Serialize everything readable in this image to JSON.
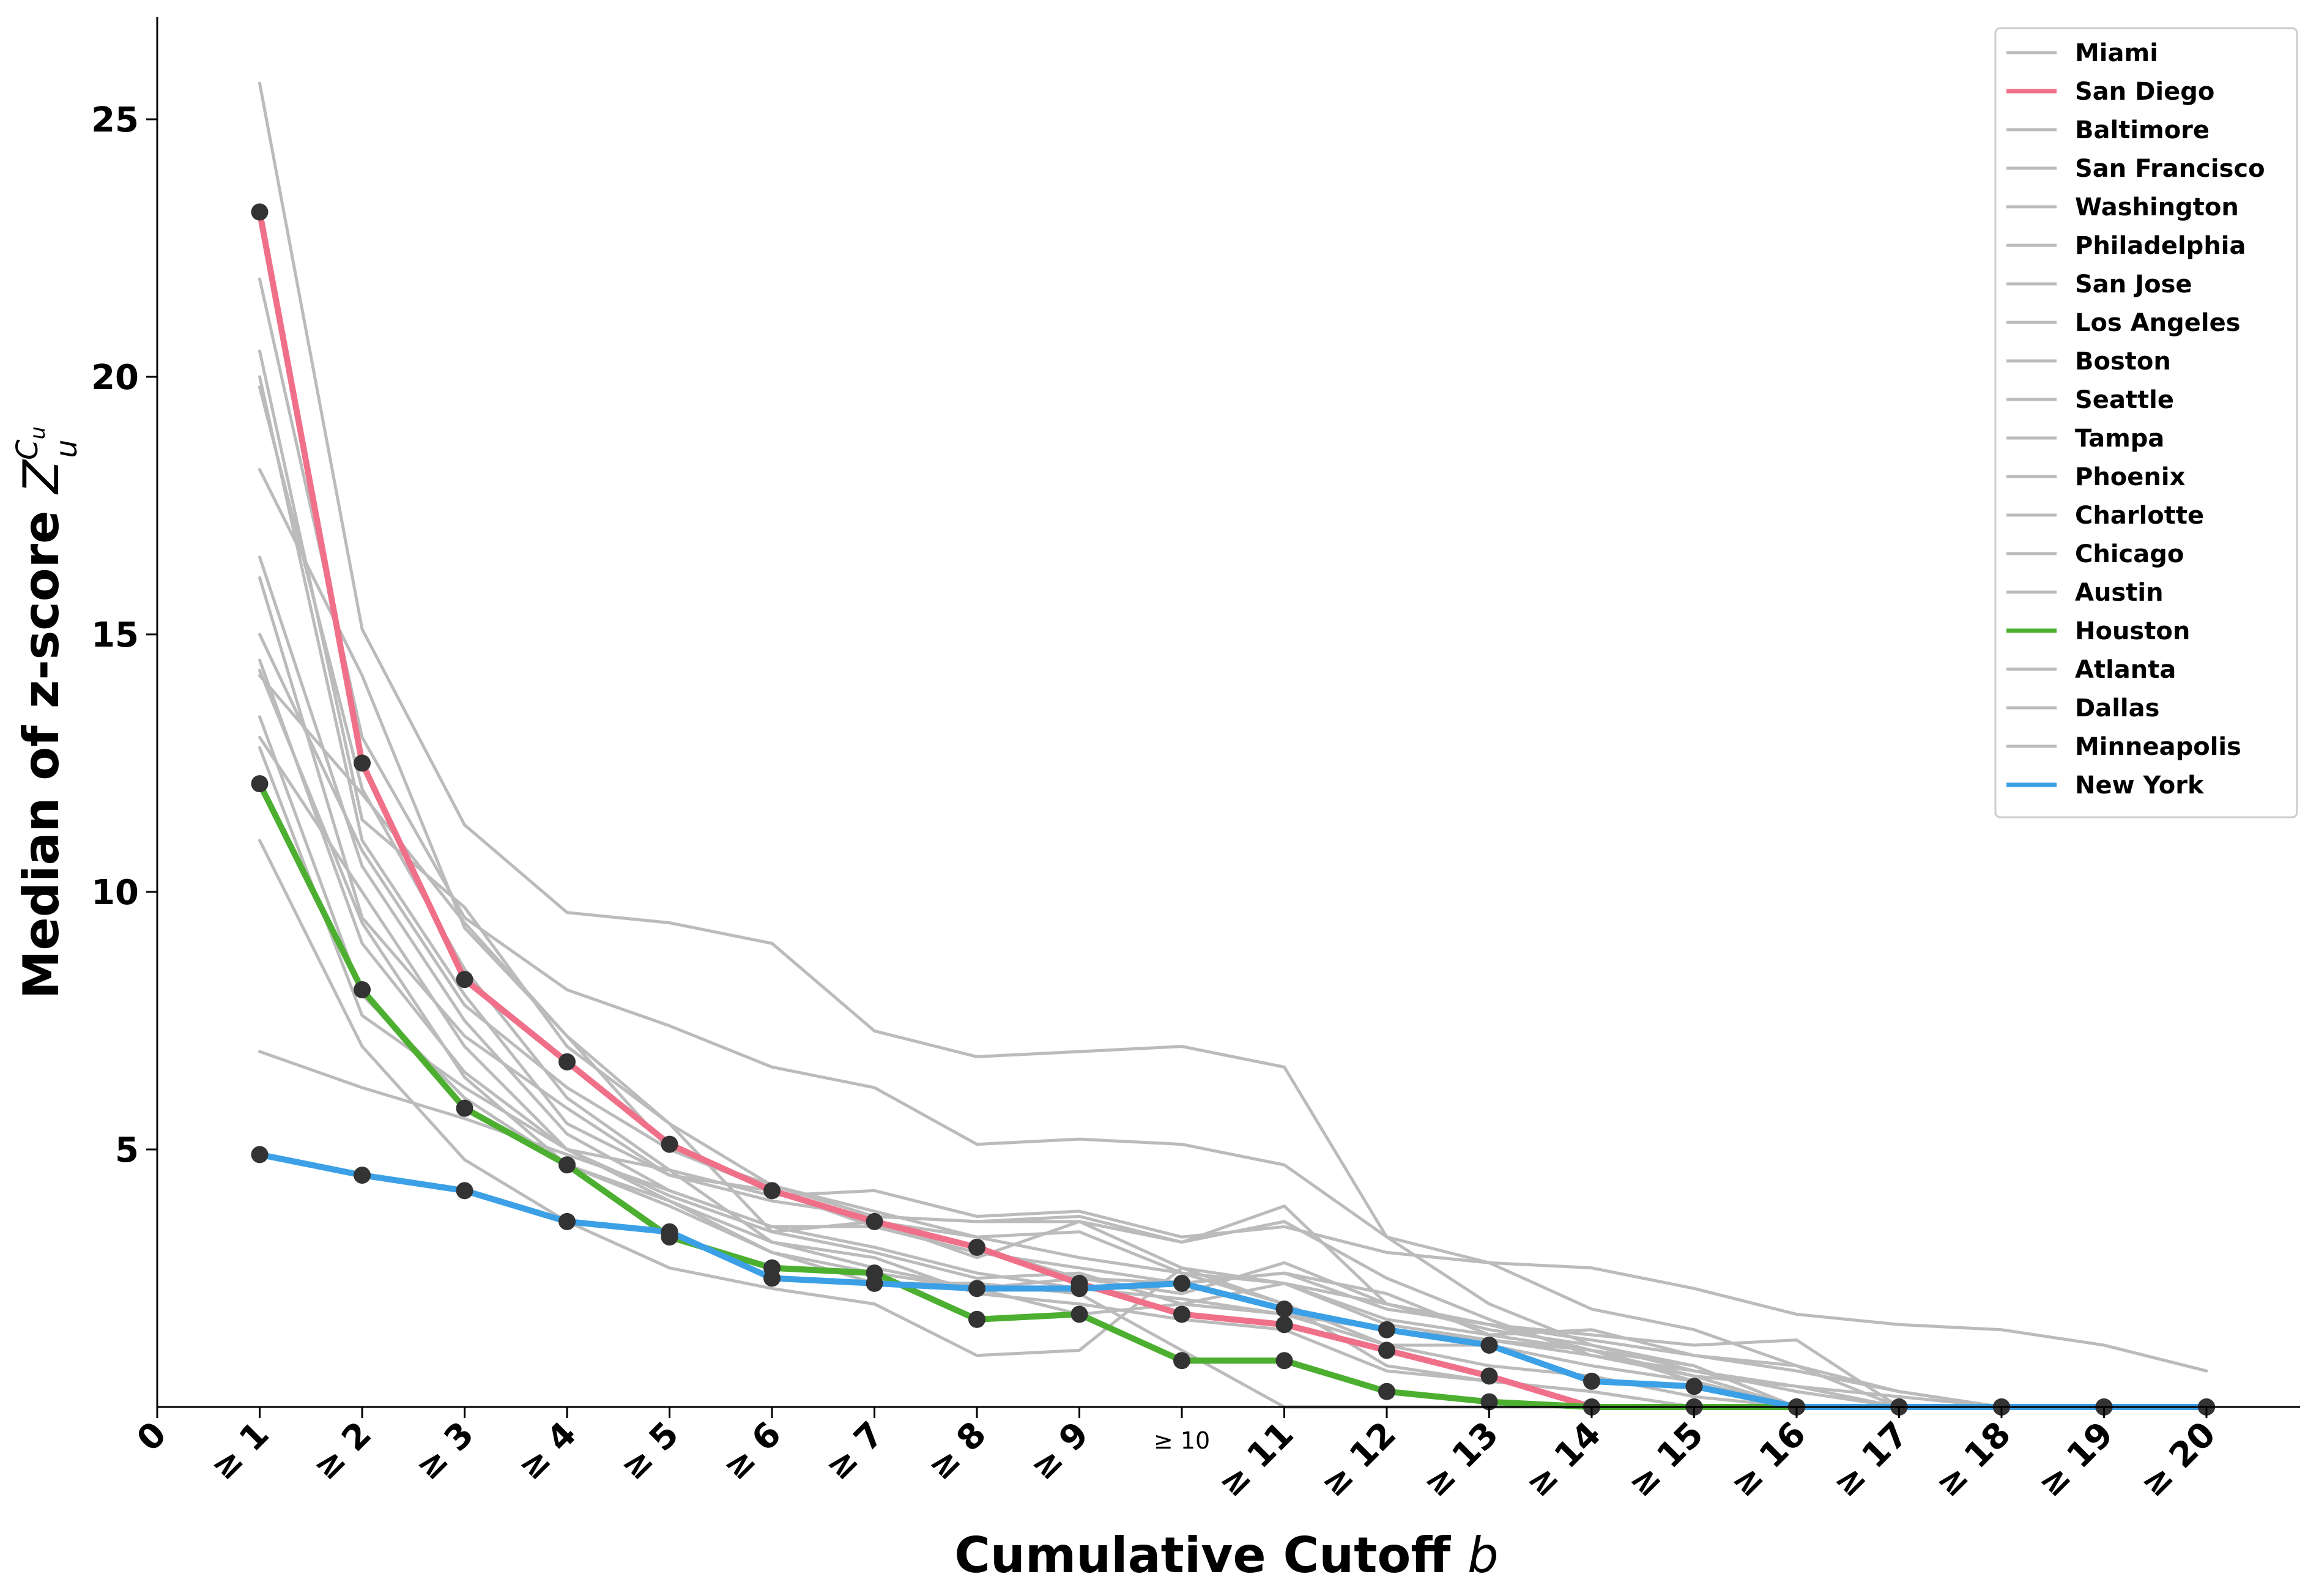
{
  "chart_data": {
    "type": "line",
    "title": "",
    "xlabel": "Cumulative Cutoff",
    "xlabel_var": "b",
    "ylabel": "Median of z-score",
    "ylabel_symbol": "Z",
    "ylabel_sup": "C",
    "ylabel_sup_sub": "u",
    "ylabel_sub": "u",
    "ylim": [
      0,
      27
    ],
    "xlim": [
      0,
      21
    ],
    "yticks": [
      5,
      10,
      15,
      20,
      25
    ],
    "x": [
      1,
      2,
      3,
      4,
      5,
      6,
      7,
      8,
      9,
      10,
      11,
      12,
      13,
      14,
      15,
      16,
      17,
      18,
      19,
      20
    ],
    "xtick_labels": [
      "0",
      "≥ 1",
      "≥ 2",
      "≥ 3",
      "≥ 4",
      "≥ 5",
      "≥ 6",
      "≥ 7",
      "≥ 8",
      "≥ 9",
      "≥ 10",
      "≥ 11",
      "≥ 12",
      "≥ 13",
      "≥ 14",
      "≥ 15",
      "≥ 16",
      "≥ 17",
      "≥ 18",
      "≥ 19",
      "≥ 20"
    ],
    "legend_position": "top-right",
    "grid": false,
    "series": [
      {
        "name": "Miami",
        "color": "#bbbbbb",
        "highlight": false,
        "values": [
          25.7,
          15.1,
          11.3,
          9.6,
          9.4,
          9.0,
          7.3,
          6.8,
          6.9,
          7.0,
          6.6,
          3.3,
          2.0,
          1.2,
          0.7,
          0.3,
          0.0,
          0.0,
          0.0,
          0.0
        ]
      },
      {
        "name": "San Diego",
        "color": "#f0708a",
        "highlight": true,
        "values": [
          23.2,
          12.5,
          8.3,
          6.7,
          5.1,
          4.2,
          3.6,
          3.1,
          2.4,
          1.8,
          1.6,
          1.1,
          0.6,
          0.0,
          0.0,
          0.0,
          0.0,
          0.0,
          0.0,
          0.0
        ]
      },
      {
        "name": "Baltimore",
        "color": "#bbbbbb",
        "highlight": false,
        "values": [
          21.9,
          13.0,
          9.5,
          8.1,
          7.4,
          6.6,
          6.2,
          5.1,
          5.2,
          5.1,
          4.7,
          3.3,
          2.8,
          2.7,
          2.3,
          1.8,
          1.6,
          1.5,
          1.2,
          0.7
        ]
      },
      {
        "name": "San Francisco",
        "color": "#bbbbbb",
        "highlight": false,
        "values": [
          20.5,
          11.4,
          9.7,
          7.0,
          5.5,
          3.4,
          3.6,
          2.9,
          3.6,
          3.2,
          3.9,
          2.0,
          1.5,
          1.2,
          0.8,
          0.0,
          0.0,
          0.0,
          0.0,
          0.0
        ]
      },
      {
        "name": "Washington",
        "color": "#bbbbbb",
        "highlight": false,
        "values": [
          20.0,
          11.0,
          8.0,
          5.5,
          4.5,
          4.0,
          3.7,
          3.6,
          3.7,
          3.2,
          3.6,
          2.5,
          1.7,
          1.0,
          0.6,
          0.4,
          0.0,
          0.0,
          0.0,
          0.0
        ]
      },
      {
        "name": "Philadelphia",
        "color": "#bbbbbb",
        "highlight": false,
        "values": [
          19.8,
          12.0,
          8.5,
          6.0,
          4.6,
          4.1,
          4.2,
          3.7,
          3.8,
          3.3,
          3.5,
          3.0,
          2.8,
          1.9,
          1.5,
          0.8,
          0.3,
          0.0,
          0.0,
          0.0
        ]
      },
      {
        "name": "San Jose",
        "color": "#bbbbbb",
        "highlight": false,
        "values": [
          18.2,
          14.2,
          9.3,
          7.2,
          5.0,
          4.2,
          3.5,
          3.1,
          2.5,
          2.2,
          2.8,
          2.0,
          1.6,
          1.1,
          0.5,
          0.0,
          0.0,
          0.0,
          0.0,
          0.0
        ]
      },
      {
        "name": "Los Angeles",
        "color": "#bbbbbb",
        "highlight": false,
        "values": [
          16.5,
          10.5,
          7.5,
          5.3,
          4.2,
          3.5,
          3.5,
          3.0,
          2.7,
          2.4,
          2.6,
          2.2,
          1.4,
          1.5,
          1.0,
          0.8,
          0.0,
          0.0,
          0.0,
          0.0
        ]
      },
      {
        "name": "Boston",
        "color": "#bbbbbb",
        "highlight": false,
        "values": [
          16.1,
          9.5,
          7.2,
          5.8,
          4.5,
          4.2,
          3.6,
          3.3,
          3.4,
          2.6,
          2.0,
          1.2,
          0.8,
          0.6,
          0.2,
          0.0,
          0.0,
          0.0,
          0.0,
          0.0
        ]
      },
      {
        "name": "Seattle",
        "color": "#bbbbbb",
        "highlight": false,
        "values": [
          14.5,
          9.0,
          6.5,
          5.0,
          4.6,
          3.2,
          2.9,
          2.2,
          2.0,
          1.7,
          1.5,
          0.7,
          0.5,
          0.3,
          0.0,
          0.0,
          0.0,
          0.0,
          0.0,
          0.0
        ]
      },
      {
        "name": "Tampa",
        "color": "#bbbbbb",
        "highlight": false,
        "values": [
          14.3,
          9.4,
          6.4,
          4.7,
          3.9,
          3.0,
          2.4,
          2.4,
          2.2,
          1.1,
          0.0,
          0.0,
          0.0,
          0.0,
          0.0,
          0.0,
          0.0,
          0.0,
          0.0,
          0.0
        ]
      },
      {
        "name": "Phoenix",
        "color": "#bbbbbb",
        "highlight": false,
        "values": [
          14.2,
          11.9,
          9.4,
          7.2,
          5.5,
          4.3,
          3.7,
          3.6,
          3.6,
          2.7,
          2.4,
          1.6,
          1.3,
          1.1,
          0.6,
          0.0,
          0.0,
          0.0,
          0.0,
          0.0
        ]
      },
      {
        "name": "Charlotte",
        "color": "#bbbbbb",
        "highlight": false,
        "values": [
          13.4,
          8.0,
          6.0,
          4.7,
          4.0,
          3.0,
          2.6,
          2.3,
          1.8,
          2.0,
          1.8,
          1.2,
          1.2,
          0.8,
          0.5,
          0.0,
          0.0,
          0.0,
          0.0,
          0.0
        ]
      },
      {
        "name": "Chicago",
        "color": "#bbbbbb",
        "highlight": false,
        "values": [
          12.8,
          7.6,
          6.2,
          5.0,
          4.1,
          3.4,
          3.0,
          2.5,
          2.6,
          2.0,
          2.4,
          1.7,
          1.4,
          1.1,
          0.8,
          0.0,
          0.0,
          0.0,
          0.0,
          0.0
        ]
      },
      {
        "name": "Austin",
        "color": "#bbbbbb",
        "highlight": false,
        "values": [
          11.0,
          7.0,
          4.8,
          3.6,
          2.7,
          2.3,
          2.0,
          1.0,
          1.1,
          2.7,
          2.0,
          0.8,
          0.5,
          0.3,
          0.0,
          0.0,
          0.0,
          0.0,
          0.0,
          0.0
        ]
      },
      {
        "name": "Houston",
        "color": "#4caf30",
        "highlight": true,
        "values": [
          12.1,
          8.1,
          5.8,
          4.7,
          3.3,
          2.7,
          2.6,
          1.7,
          1.8,
          0.9,
          0.9,
          0.3,
          0.1,
          0.0,
          0.0,
          0.0,
          0.0,
          0.0,
          0.0,
          0.0
        ]
      },
      {
        "name": "Atlanta",
        "color": "#bbbbbb",
        "highlight": false,
        "values": [
          6.9,
          6.2,
          5.6,
          4.9,
          4.2,
          3.5,
          3.1,
          2.6,
          2.3,
          2.1,
          1.8,
          1.5,
          1.3,
          1.0,
          0.7,
          0.4,
          0.2,
          0.0,
          0.0,
          0.0
        ]
      },
      {
        "name": "Dallas",
        "color": "#bbbbbb",
        "highlight": false,
        "values": [
          13.0,
          10.0,
          7.0,
          5.0,
          4.0,
          3.2,
          2.7,
          2.3,
          2.5,
          2.4,
          2.6,
          1.9,
          1.6,
          1.4,
          1.2,
          1.3,
          0.0,
          0.0,
          0.0,
          0.0
        ]
      },
      {
        "name": "Minneapolis",
        "color": "#bbbbbb",
        "highlight": false,
        "values": [
          15.0,
          10.8,
          7.8,
          6.2,
          5.0,
          4.3,
          3.8,
          3.3,
          2.9,
          2.6,
          2.4,
          2.0,
          1.6,
          1.3,
          1.0,
          0.7,
          0.3,
          0.0,
          0.0,
          0.0
        ]
      },
      {
        "name": "New York",
        "color": "#3ba0e6",
        "highlight": true,
        "values": [
          4.9,
          4.5,
          4.2,
          3.6,
          3.4,
          2.5,
          2.4,
          2.3,
          2.3,
          2.4,
          1.9,
          1.5,
          1.2,
          0.5,
          0.4,
          0.0,
          0.0,
          0.0,
          0.0,
          0.0
        ]
      }
    ]
  }
}
